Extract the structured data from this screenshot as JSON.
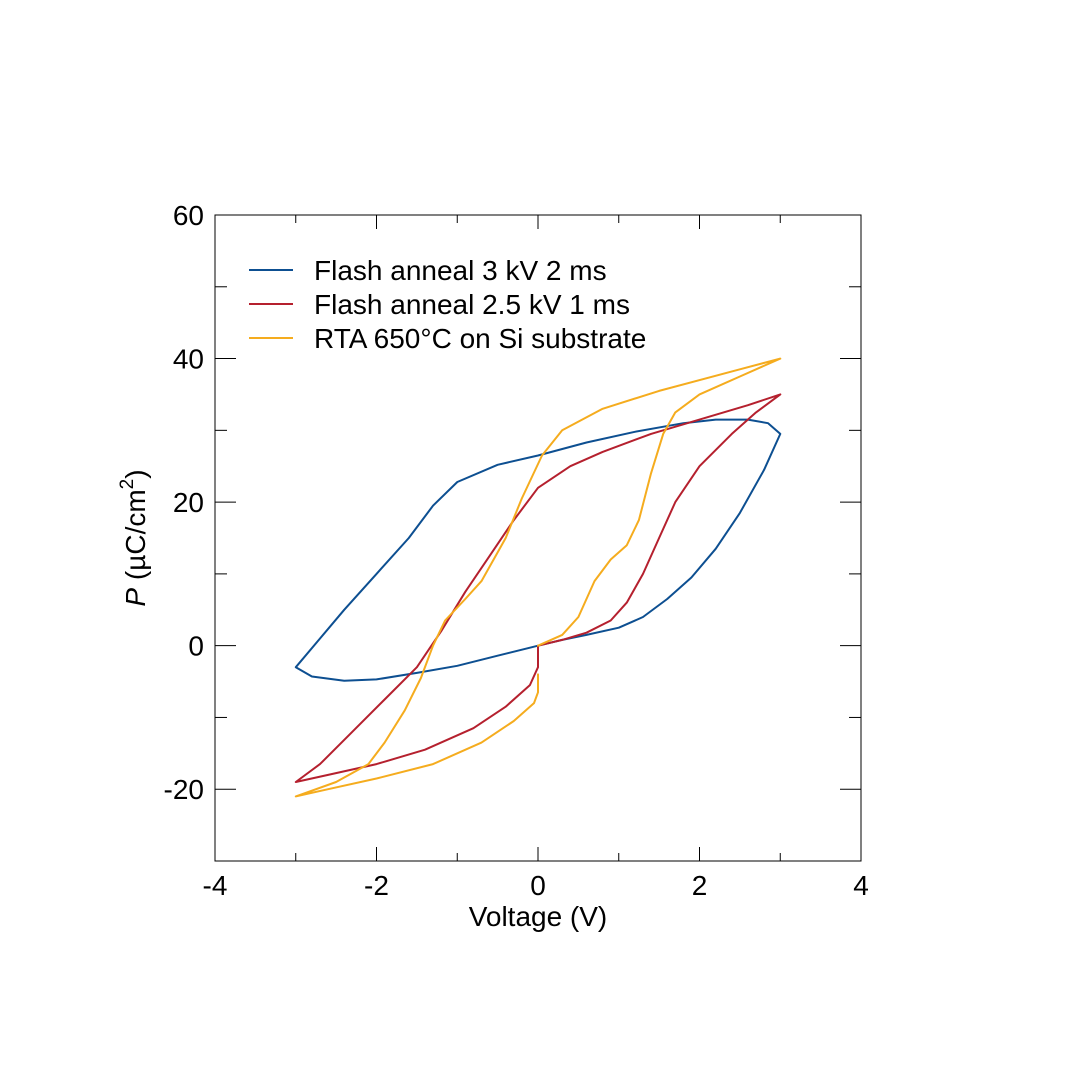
{
  "chart_data": {
    "type": "line",
    "title": "",
    "xlabel": "Voltage (V)",
    "ylabel": {
      "symbol": "P",
      "unit_open": " (µC/cm",
      "unit_sup": "2",
      "unit_close": ")"
    },
    "xlim": [
      -4,
      4
    ],
    "ylim": [
      -30,
      60
    ],
    "x_ticks": [
      -4,
      -2,
      0,
      2,
      4
    ],
    "x_tick_labels": [
      "-4",
      "-2",
      "0",
      "2",
      "4"
    ],
    "x_minor_step": 1,
    "y_ticks": [
      -20,
      0,
      20,
      40,
      60
    ],
    "y_tick_labels": [
      "-20",
      "0",
      "20",
      "40",
      "60"
    ],
    "y_minor_step": 10,
    "grid": false,
    "legend_position": "top-left",
    "series": [
      {
        "name": "Flash anneal 3 kV 2 ms",
        "color": "#0d4f91",
        "points": [
          [
            0,
            0
          ],
          [
            0.3,
            0.8
          ],
          [
            0.6,
            1.5
          ],
          [
            1.0,
            2.5
          ],
          [
            1.3,
            4.0
          ],
          [
            1.6,
            6.5
          ],
          [
            1.9,
            9.5
          ],
          [
            2.2,
            13.5
          ],
          [
            2.5,
            18.5
          ],
          [
            2.8,
            24.5
          ],
          [
            3.0,
            29.5
          ],
          [
            2.85,
            31.0
          ],
          [
            2.6,
            31.5
          ],
          [
            2.2,
            31.5
          ],
          [
            1.8,
            31.0
          ],
          [
            1.2,
            29.8
          ],
          [
            0.6,
            28.3
          ],
          [
            0.0,
            26.5
          ],
          [
            -0.5,
            25.2
          ],
          [
            -1.0,
            22.8
          ],
          [
            -1.3,
            19.5
          ],
          [
            -1.6,
            15.0
          ],
          [
            -2.0,
            10.0
          ],
          [
            -2.4,
            5.0
          ],
          [
            -2.7,
            1.0
          ],
          [
            -3.0,
            -3.0
          ],
          [
            -2.8,
            -4.3
          ],
          [
            -2.4,
            -4.9
          ],
          [
            -2.0,
            -4.7
          ],
          [
            -1.5,
            -3.8
          ],
          [
            -1.0,
            -2.8
          ],
          [
            -0.5,
            -1.4
          ],
          [
            0,
            0
          ]
        ]
      },
      {
        "name": "Flash anneal 2.5 kV 1 ms",
        "color": "#b5202e",
        "points": [
          [
            0,
            0
          ],
          [
            0.3,
            0.8
          ],
          [
            0.6,
            1.8
          ],
          [
            0.9,
            3.5
          ],
          [
            1.1,
            6.0
          ],
          [
            1.3,
            10.0
          ],
          [
            1.5,
            15.0
          ],
          [
            1.7,
            20.0
          ],
          [
            2.0,
            25.0
          ],
          [
            2.4,
            29.5
          ],
          [
            2.7,
            32.5
          ],
          [
            3.0,
            35.0
          ],
          [
            2.6,
            33.5
          ],
          [
            2.0,
            31.5
          ],
          [
            1.4,
            29.5
          ],
          [
            0.8,
            27.0
          ],
          [
            0.4,
            25.0
          ],
          [
            0.0,
            22.0
          ],
          [
            -0.3,
            17.5
          ],
          [
            -0.6,
            12.5
          ],
          [
            -0.9,
            7.5
          ],
          [
            -1.2,
            2.0
          ],
          [
            -1.5,
            -3.0
          ],
          [
            -1.9,
            -7.5
          ],
          [
            -2.3,
            -12.0
          ],
          [
            -2.7,
            -16.5
          ],
          [
            -3.0,
            -19.0
          ],
          [
            -2.6,
            -18.0
          ],
          [
            -2.0,
            -16.5
          ],
          [
            -1.4,
            -14.5
          ],
          [
            -0.8,
            -11.5
          ],
          [
            -0.4,
            -8.5
          ],
          [
            -0.1,
            -5.5
          ],
          [
            0,
            -3.0
          ],
          [
            0,
            0
          ]
        ]
      },
      {
        "name": "RTA 650°C on Si substrate",
        "color": "#f5ac1e",
        "points": [
          [
            0,
            0
          ],
          [
            0.3,
            1.5
          ],
          [
            0.5,
            4.0
          ],
          [
            0.7,
            9.0
          ],
          [
            0.9,
            12.0
          ],
          [
            1.1,
            14.0
          ],
          [
            1.25,
            17.5
          ],
          [
            1.4,
            24.0
          ],
          [
            1.55,
            29.5
          ],
          [
            1.7,
            32.5
          ],
          [
            2.0,
            35.0
          ],
          [
            2.5,
            37.5
          ],
          [
            3.0,
            40.0
          ],
          [
            2.5,
            38.5
          ],
          [
            1.5,
            35.5
          ],
          [
            0.8,
            33.0
          ],
          [
            0.3,
            30.0
          ],
          [
            0.05,
            26.5
          ],
          [
            -0.2,
            20.5
          ],
          [
            -0.4,
            15.0
          ],
          [
            -0.7,
            9.0
          ],
          [
            -0.9,
            6.5
          ],
          [
            -1.15,
            3.5
          ],
          [
            -1.3,
            0.0
          ],
          [
            -1.45,
            -4.5
          ],
          [
            -1.65,
            -9.0
          ],
          [
            -1.9,
            -13.5
          ],
          [
            -2.1,
            -16.5
          ],
          [
            -2.5,
            -19.0
          ],
          [
            -3.0,
            -21.0
          ],
          [
            -2.6,
            -20.0
          ],
          [
            -2.0,
            -18.5
          ],
          [
            -1.3,
            -16.5
          ],
          [
            -0.7,
            -13.5
          ],
          [
            -0.3,
            -10.5
          ],
          [
            -0.05,
            -8.0
          ],
          [
            0,
            -6.5
          ],
          [
            0,
            -4.0
          ]
        ]
      }
    ]
  }
}
